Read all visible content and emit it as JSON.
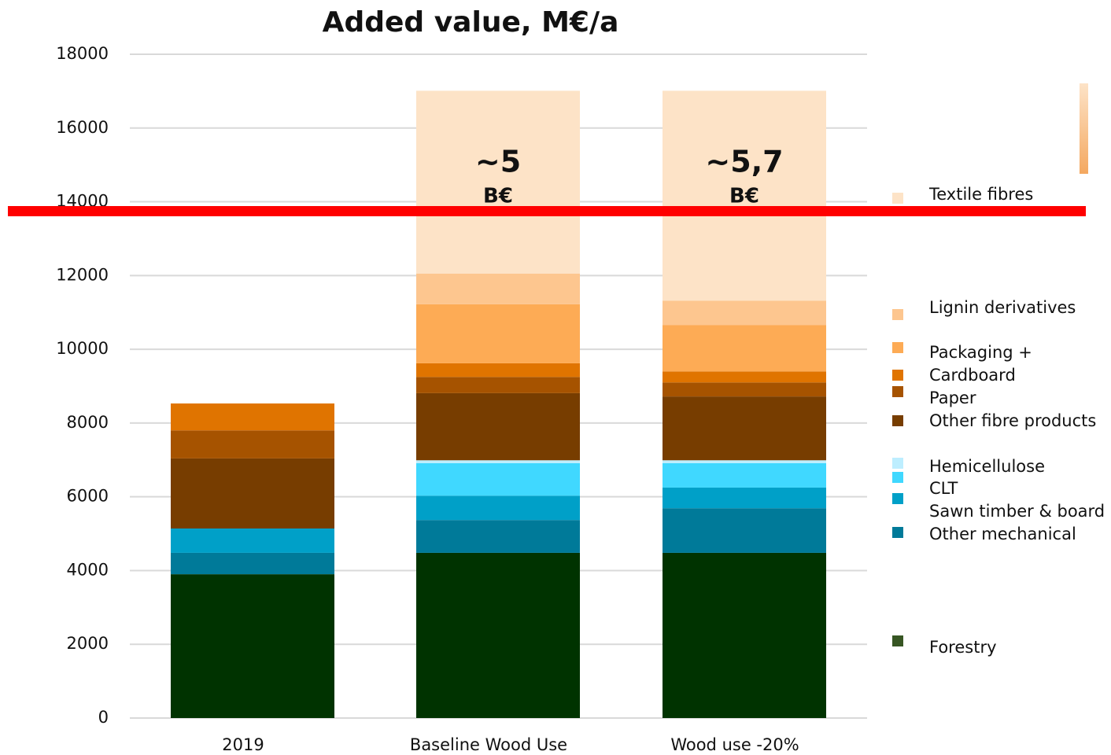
{
  "chart_data": {
    "type": "stacked_bar",
    "title": "Added value, M€/a",
    "categories": [
      "2019",
      "Baseline Wood Use",
      "Wood use -20%"
    ],
    "series": [
      {
        "name": "Forestry",
        "color": "#003300",
        "values": [
          3900,
          4480,
          4480
        ]
      },
      {
        "name": "Other mechanical",
        "color": "#007a99",
        "values": [
          580,
          890,
          1210
        ]
      },
      {
        "name": "Sawn timber & board",
        "color": "#00a0c8",
        "values": [
          660,
          660,
          560
        ]
      },
      {
        "name": "CLT",
        "color": "#40d8ff",
        "values": [
          0,
          880,
          660
        ]
      },
      {
        "name": "Hemicellulose",
        "color": "#bdeeff",
        "values": [
          0,
          80,
          80
        ]
      },
      {
        "name": "Other fibre products",
        "color": "#773d00",
        "values": [
          1900,
          1820,
          1730
        ]
      },
      {
        "name": "Paper",
        "color": "#a65300",
        "values": [
          760,
          440,
          380
        ]
      },
      {
        "name": "Cardboard",
        "color": "#e07400",
        "values": [
          730,
          370,
          300
        ]
      },
      {
        "name": "Packaging +",
        "color": "#fdab55",
        "values": [
          0,
          1600,
          1260
        ]
      },
      {
        "name": "Lignin derivatives",
        "color": "#fdc68f",
        "values": [
          0,
          830,
          660
        ]
      },
      {
        "name": "Textile fibres",
        "color": "#fde3c7",
        "values": [
          0,
          4960,
          5690
        ]
      }
    ],
    "annotations": [
      {
        "category": 1,
        "lines": [
          "~5",
          "B€"
        ]
      },
      {
        "category": 2,
        "lines": [
          "~5,7",
          "B€"
        ]
      }
    ],
    "ylim": [
      0,
      18000
    ],
    "yticks": [
      0,
      2000,
      4000,
      6000,
      8000,
      10000,
      12000,
      14000,
      16000,
      18000
    ],
    "grid": true
  }
}
